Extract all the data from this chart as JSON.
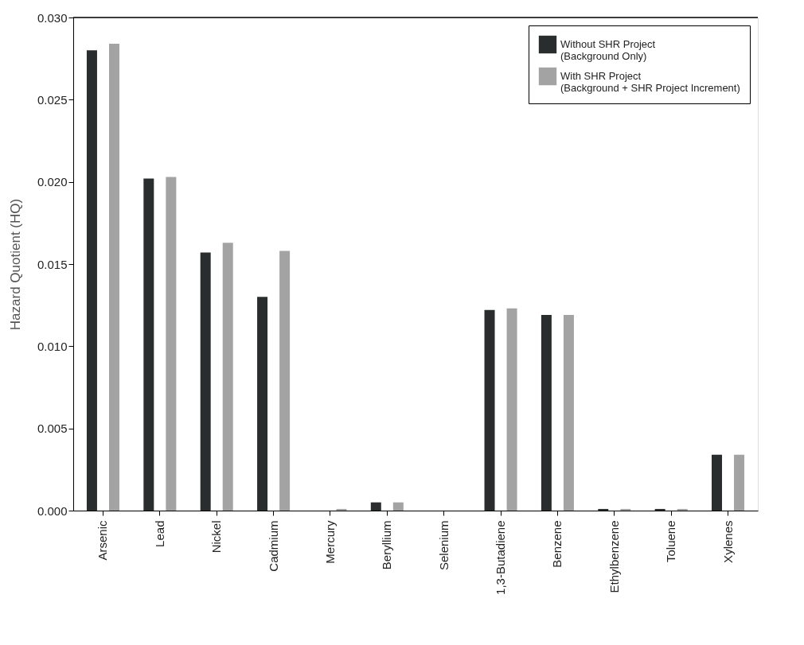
{
  "chart_data": {
    "type": "bar",
    "ylabel": "Hazard Quotient (HQ)",
    "categories": [
      "Arsenic",
      "Lead",
      "Nickel",
      "Cadmium",
      "Mercury",
      "Beryllium",
      "Selenium",
      "1,3-Butadiene",
      "Benzene",
      "Ethylbenzene",
      "Toluene",
      "Xylenes"
    ],
    "series": [
      {
        "name": "Without SHR Project\n(Background Only)",
        "color": "#2a2d2e",
        "values": [
          0.028,
          0.0202,
          0.0157,
          0.013,
          0.0,
          0.0005,
          0.0,
          0.0122,
          0.0119,
          0.0001,
          0.0001,
          0.0034
        ]
      },
      {
        "name": "With SHR Project\n(Background + SHR Project Increment)",
        "color": "#a3a3a3",
        "values": [
          0.0284,
          0.0203,
          0.0163,
          0.0158,
          0.0001,
          0.0005,
          0.0,
          0.0123,
          0.0119,
          0.0001,
          0.0001,
          0.0034
        ]
      }
    ],
    "ylim": [
      0,
      0.03
    ],
    "yticks": [
      {
        "value": 0,
        "label": "0.000"
      },
      {
        "value": 0.005,
        "label": "0.005"
      },
      {
        "value": 0.01,
        "label": "0.010"
      },
      {
        "value": 0.015,
        "label": "0.015"
      },
      {
        "value": 0.02,
        "label": "0.020"
      },
      {
        "value": 0.025,
        "label": "0.025"
      },
      {
        "value": 0.03,
        "label": "0.030"
      }
    ],
    "grid": false,
    "legend": "top right"
  }
}
